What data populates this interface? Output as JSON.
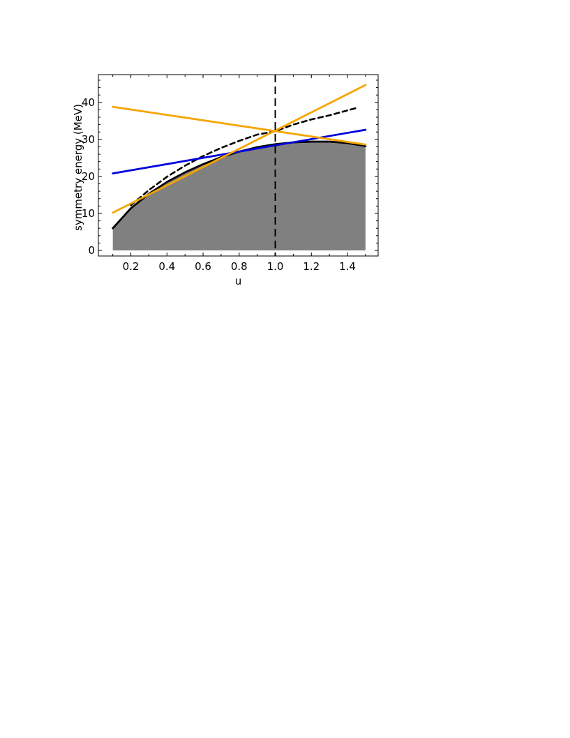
{
  "chart_data": {
    "type": "line",
    "title": "",
    "xlabel": "u",
    "ylabel": "symmetry energy (MeV)",
    "xlim": [
      0.02,
      1.57
    ],
    "ylim": [
      -1.5,
      47.5
    ],
    "x_ticks": [
      {
        "value": 0.2,
        "label": "0.2"
      },
      {
        "value": 0.4,
        "label": "0.4"
      },
      {
        "value": 0.6,
        "label": "0.6"
      },
      {
        "value": 0.8,
        "label": "0.8"
      },
      {
        "value": 1.0,
        "label": "1.0"
      },
      {
        "value": 1.2,
        "label": "1.2"
      },
      {
        "value": 1.4,
        "label": "1.4"
      }
    ],
    "y_ticks": [
      {
        "value": 0,
        "label": "0"
      },
      {
        "value": 10,
        "label": "10"
      },
      {
        "value": 20,
        "label": "20"
      },
      {
        "value": 30,
        "label": "30"
      },
      {
        "value": 40,
        "label": "40"
      }
    ],
    "grid": false,
    "legend": "none",
    "shaded_region": {
      "color": "#808080",
      "boundary": {
        "x": [
          0.1,
          0.2,
          0.3,
          0.4,
          0.5,
          0.6,
          0.7,
          0.8,
          0.9,
          1.0,
          1.1,
          1.2,
          1.3,
          1.4,
          1.5
        ],
        "y": [
          6.0,
          11.4,
          15.3,
          18.5,
          21.1,
          23.3,
          25.2,
          26.7,
          27.9,
          28.7,
          29.2,
          29.4,
          29.4,
          29.0,
          28.2
        ]
      }
    },
    "series": [
      {
        "style": "solid",
        "color": "#000000",
        "x": [
          0.1,
          0.2,
          0.3,
          0.4,
          0.5,
          0.6,
          0.7,
          0.8,
          0.9,
          1.0,
          1.1,
          1.2,
          1.3,
          1.4,
          1.5
        ],
        "y": [
          6.0,
          11.4,
          15.3,
          18.5,
          21.1,
          23.3,
          25.2,
          26.7,
          27.9,
          28.7,
          29.2,
          29.4,
          29.4,
          29.0,
          28.2
        ]
      },
      {
        "style": "dashed",
        "color": "#000000",
        "x": [
          0.2,
          0.3,
          0.4,
          0.5,
          0.6,
          0.7,
          0.8,
          0.9,
          1.0,
          1.1,
          1.2,
          1.3,
          1.45
        ],
        "y": [
          12.2,
          16.3,
          19.9,
          22.9,
          25.5,
          27.7,
          29.6,
          31.3,
          32.2,
          34.0,
          35.4,
          36.5,
          38.5
        ]
      },
      {
        "style": "solid",
        "color": "#0000dd",
        "x": [
          0.1,
          1.5
        ],
        "y": [
          20.8,
          32.6
        ]
      },
      {
        "style": "solid",
        "color": "#f5a500",
        "x": [
          0.1,
          1.5
        ],
        "y": [
          10.2,
          44.7
        ]
      },
      {
        "style": "solid",
        "color": "#f5a500",
        "x": [
          0.1,
          1.5
        ],
        "y": [
          38.8,
          28.6
        ]
      }
    ],
    "vertical_line": {
      "x": 1.0,
      "style": "dashed",
      "color": "#000000"
    }
  }
}
